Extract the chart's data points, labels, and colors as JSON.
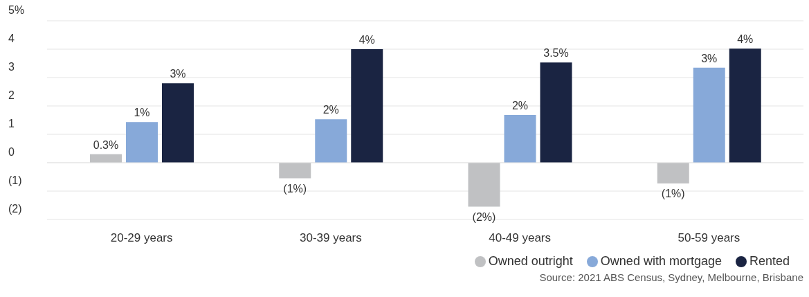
{
  "chart_data": {
    "type": "bar",
    "categories": [
      "20-29 years",
      "30-39 years",
      "40-49 years",
      "50-59 years"
    ],
    "series": [
      {
        "name": "Owned outright",
        "color": "#c0c1c3",
        "values": [
          0.3,
          -0.55,
          -1.55,
          -0.73
        ],
        "value_labels": [
          "0.3%",
          "(1%)",
          "(2%)",
          "(1%)"
        ]
      },
      {
        "name": "Owned with mortgage",
        "color": "#87a9d9",
        "values": [
          1.43,
          1.53,
          1.68,
          3.35
        ],
        "value_labels": [
          "1%",
          "2%",
          "2%",
          "3%"
        ]
      },
      {
        "name": "Rented",
        "color": "#1a2442",
        "values": [
          2.8,
          4.0,
          3.53,
          4.02
        ],
        "value_labels": [
          "3%",
          "4%",
          "3.5%",
          "4%"
        ]
      }
    ],
    "ylim": [
      -2,
      5
    ],
    "yticks": [
      {
        "value": -2,
        "label": "(2)"
      },
      {
        "value": -1,
        "label": "(1)"
      },
      0,
      1,
      2,
      3,
      4,
      {
        "value": 5,
        "label": "5%"
      }
    ],
    "grid": "y",
    "legend": "bottom right",
    "annotations": [
      "Source: 2021 ABS Census, Sydney, Melbourne, Brisbane"
    ]
  }
}
